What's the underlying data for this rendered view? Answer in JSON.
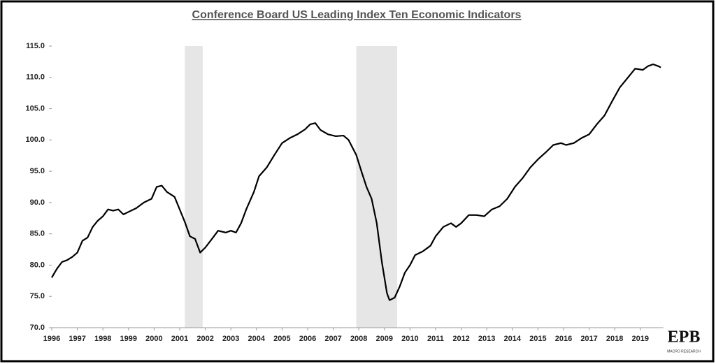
{
  "chart_data": {
    "type": "line",
    "title": "Conference Board US Leading Index Ten Economic Indicators",
    "x": [
      1996.0,
      1996.2,
      1996.4,
      1996.6,
      1996.8,
      1997.0,
      1997.2,
      1997.4,
      1997.6,
      1997.8,
      1998.0,
      1998.2,
      1998.4,
      1998.6,
      1998.8,
      1999.0,
      1999.3,
      1999.6,
      1999.9,
      2000.1,
      2000.3,
      2000.5,
      2000.8,
      2001.0,
      2001.2,
      2001.4,
      2001.6,
      2001.8,
      2002.0,
      2002.3,
      2002.5,
      2002.8,
      2003.0,
      2003.2,
      2003.4,
      2003.6,
      2003.9,
      2004.1,
      2004.4,
      2004.7,
      2005.0,
      2005.3,
      2005.6,
      2005.9,
      2006.1,
      2006.3,
      2006.5,
      2006.8,
      2007.1,
      2007.4,
      2007.6,
      2007.9,
      2008.1,
      2008.3,
      2008.5,
      2008.7,
      2008.9,
      2009.1,
      2009.2,
      2009.4,
      2009.6,
      2009.8,
      2010.0,
      2010.2,
      2010.5,
      2010.8,
      2011.0,
      2011.3,
      2011.6,
      2011.8,
      2012.0,
      2012.3,
      2012.6,
      2012.9,
      2013.2,
      2013.5,
      2013.8,
      2014.1,
      2014.4,
      2014.7,
      2015.0,
      2015.3,
      2015.6,
      2015.9,
      2016.1,
      2016.4,
      2016.7,
      2017.0,
      2017.3,
      2017.6,
      2017.9,
      2018.2,
      2018.5,
      2018.8,
      2019.1,
      2019.3,
      2019.5,
      2019.7,
      2019.8
    ],
    "series": [
      {
        "color": "#000000",
        "values": [
          78.0,
          79.4,
          80.5,
          80.8,
          81.3,
          82.0,
          83.9,
          84.4,
          86.1,
          87.1,
          87.8,
          88.9,
          88.7,
          88.9,
          88.1,
          88.5,
          89.1,
          90.0,
          90.6,
          92.5,
          92.7,
          91.7,
          90.9,
          88.9,
          86.9,
          84.6,
          84.2,
          82.0,
          82.8,
          84.4,
          85.5,
          85.2,
          85.5,
          85.2,
          86.7,
          88.9,
          91.7,
          94.2,
          95.6,
          97.6,
          99.5,
          100.3,
          100.9,
          101.7,
          102.5,
          102.7,
          101.6,
          100.9,
          100.6,
          100.7,
          100.0,
          97.6,
          95.0,
          92.5,
          90.6,
          86.7,
          80.5,
          75.5,
          74.4,
          74.8,
          76.6,
          78.8,
          80.0,
          81.6,
          82.2,
          83.1,
          84.6,
          86.1,
          86.7,
          86.1,
          86.7,
          88.0,
          88.0,
          87.8,
          88.9,
          89.4,
          90.6,
          92.5,
          93.9,
          95.6,
          96.9,
          98.0,
          99.2,
          99.5,
          99.2,
          99.5,
          100.3,
          100.9,
          102.5,
          103.9,
          106.2,
          108.4,
          109.9,
          111.4,
          111.2,
          111.8,
          112.1,
          111.8,
          111.6
        ]
      }
    ],
    "recessions": [
      [
        2001.2,
        2001.9
      ],
      [
        2007.9,
        2009.5
      ]
    ],
    "recession_color": "#e6e6e6",
    "xlim": [
      1996,
      2019.9
    ],
    "xticks": [
      1996,
      1997,
      1998,
      1999,
      2000,
      2001,
      2002,
      2003,
      2004,
      2005,
      2006,
      2007,
      2008,
      2009,
      2010,
      2011,
      2012,
      2013,
      2014,
      2015,
      2016,
      2017,
      2018,
      2019
    ],
    "ylim": [
      70,
      115
    ],
    "yticks": [
      {
        "value": 70,
        "label": "70.0"
      },
      {
        "value": 75,
        "label": "75.0"
      },
      {
        "value": 80,
        "label": "80.0"
      },
      {
        "value": 85,
        "label": "85.0"
      },
      {
        "value": 90,
        "label": "90.0"
      },
      {
        "value": 95,
        "label": "95.0"
      },
      {
        "value": 100,
        "label": "100.0"
      },
      {
        "value": 105,
        "label": "105.0"
      },
      {
        "value": 110,
        "label": "110.0"
      },
      {
        "value": 115,
        "label": "115.0"
      }
    ]
  },
  "branding": {
    "logo": "EPB",
    "tagline": "MACRO RESEARCH"
  }
}
